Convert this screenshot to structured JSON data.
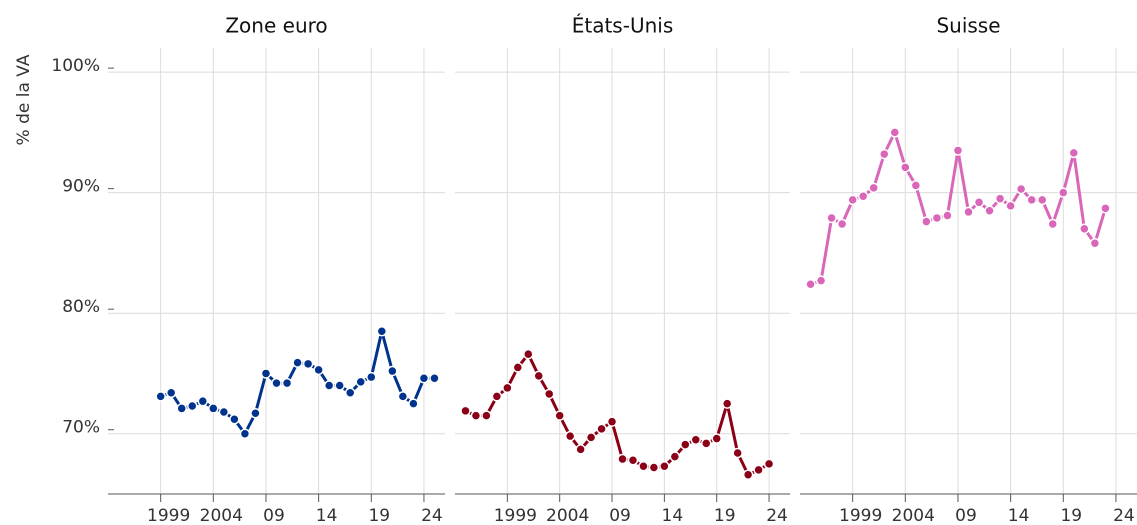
{
  "chart_data": [
    {
      "type": "line",
      "title": "Zone euro",
      "ylabel": "% de la VA",
      "color": "#00338d",
      "x": [
        1999,
        2000,
        2001,
        2002,
        2003,
        2004,
        2005,
        2006,
        2007,
        2008,
        2009,
        2010,
        2011,
        2012,
        2013,
        2014,
        2015,
        2016,
        2017,
        2018,
        2019,
        2020,
        2021,
        2022,
        2023,
        2024,
        2025
      ],
      "values": [
        73.1,
        73.4,
        72.1,
        72.3,
        72.7,
        72.1,
        71.8,
        71.2,
        70.0,
        71.7,
        75.0,
        74.2,
        74.2,
        75.9,
        75.8,
        75.3,
        74.0,
        74.0,
        73.4,
        74.3,
        74.7,
        78.5,
        75.2,
        73.1,
        72.5,
        74.6,
        74.6
      ],
      "xlim": [
        1994,
        2026
      ],
      "xticks": [
        1999,
        2004,
        {
          "value": 2009,
          "label": "09"
        },
        {
          "value": 2014,
          "label": "14"
        },
        {
          "value": 2019,
          "label": "19"
        },
        {
          "value": 2024,
          "label": "24"
        }
      ],
      "ylim": [
        65,
        102
      ],
      "yticks": [
        {
          "value": 70,
          "label": "70%"
        },
        {
          "value": 80,
          "label": "80%"
        },
        {
          "value": 90,
          "label": "90%"
        },
        {
          "value": 100,
          "label": "100%"
        }
      ],
      "grid": true
    },
    {
      "type": "line",
      "title": "États-Unis",
      "color": "#8b0016",
      "x": [
        1995,
        1996,
        1997,
        1998,
        1999,
        2000,
        2001,
        2002,
        2003,
        2004,
        2005,
        2006,
        2007,
        2008,
        2009,
        2010,
        2011,
        2012,
        2013,
        2014,
        2015,
        2016,
        2017,
        2018,
        2019,
        2020,
        2021,
        2022,
        2023,
        2024
      ],
      "values": [
        71.9,
        71.5,
        71.5,
        73.1,
        73.8,
        75.5,
        76.6,
        74.8,
        73.3,
        71.5,
        69.8,
        68.7,
        69.7,
        70.4,
        71.0,
        67.9,
        67.8,
        67.3,
        67.2,
        67.3,
        68.1,
        69.1,
        69.5,
        69.2,
        69.6,
        72.5,
        68.4,
        66.6,
        67.0,
        67.5
      ],
      "xlim": [
        1994,
        2026
      ],
      "xticks": [
        1999,
        2004,
        {
          "value": 2009,
          "label": "09"
        },
        {
          "value": 2014,
          "label": "14"
        },
        {
          "value": 2019,
          "label": "19"
        },
        {
          "value": 2024,
          "label": "24"
        }
      ],
      "ylim": [
        65,
        102
      ],
      "yticks": [
        70,
        80,
        90,
        100
      ],
      "grid": true
    },
    {
      "type": "line",
      "title": "Suisse",
      "color": "#d966b8",
      "x": [
        1995,
        1996,
        1997,
        1998,
        1999,
        2000,
        2001,
        2002,
        2003,
        2004,
        2005,
        2006,
        2007,
        2008,
        2009,
        2010,
        2011,
        2012,
        2013,
        2014,
        2015,
        2016,
        2017,
        2018,
        2019,
        2020,
        2021,
        2022,
        2023
      ],
      "values": [
        82.4,
        82.7,
        87.9,
        87.4,
        89.4,
        89.7,
        90.4,
        93.2,
        95.0,
        92.1,
        90.6,
        87.6,
        87.9,
        88.1,
        93.5,
        88.4,
        89.2,
        88.5,
        89.5,
        88.9,
        90.3,
        89.4,
        89.4,
        87.4,
        90.0,
        93.3,
        87.0,
        85.8,
        88.7
      ],
      "xlim": [
        1994,
        2026
      ],
      "xticks": [
        1999,
        2004,
        {
          "value": 2009,
          "label": "09"
        },
        {
          "value": 2014,
          "label": "14"
        },
        {
          "value": 2019,
          "label": "19"
        },
        {
          "value": 2024,
          "label": "24"
        }
      ],
      "ylim": [
        65,
        102
      ],
      "yticks": [
        70,
        80,
        90,
        100
      ],
      "grid": true
    }
  ]
}
